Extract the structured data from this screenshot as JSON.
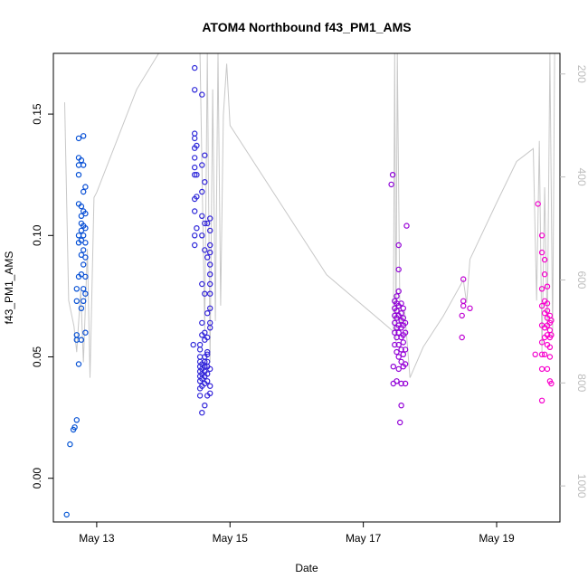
{
  "chart_data": {
    "type": "scatter",
    "title": "ATOM4 Northbound f43_PM1_AMS",
    "xlabel": "Date",
    "ylabel": "f43_PM1_AMS",
    "xlim_days": [
      12.35,
      19.95
    ],
    "ylim": [
      -0.018,
      0.175
    ],
    "x_ticks": [
      {
        "value": 13,
        "label": "May 13"
      },
      {
        "value": 15,
        "label": "May 15"
      },
      {
        "value": 17,
        "label": "May 17"
      },
      {
        "value": 19,
        "label": "May 19"
      }
    ],
    "y_ticks": [
      {
        "value": 0.0,
        "label": "0.00"
      },
      {
        "value": 0.05,
        "label": "0.05"
      },
      {
        "value": 0.1,
        "label": "0.10"
      },
      {
        "value": 0.15,
        "label": "0.15"
      }
    ],
    "right_axis": {
      "ylim": [
        1070,
        160
      ],
      "ticks": [
        {
          "value": 200,
          "label": "200"
        },
        {
          "value": 400,
          "label": "400"
        },
        {
          "value": 600,
          "label": "600"
        },
        {
          "value": 800,
          "label": "800"
        },
        {
          "value": 1000,
          "label": "1000"
        }
      ],
      "color": "#bdbdbd"
    },
    "colors": {
      "start": "#0055d4",
      "mid": "#5500dd",
      "end": "#ff00cc",
      "line": "#c8c8c8",
      "axis": "#000000"
    },
    "line_series": [
      [
        12.52,
        255
      ],
      [
        12.58,
        640
      ],
      [
        12.66,
        690
      ],
      [
        12.7,
        740
      ],
      [
        12.76,
        620
      ],
      [
        12.8,
        760
      ],
      [
        12.86,
        540
      ],
      [
        12.9,
        790
      ],
      [
        12.96,
        440
      ],
      [
        13.0,
        430
      ],
      [
        13.3,
        330
      ],
      [
        13.6,
        230
      ],
      [
        13.93,
        160
      ],
      [
        14.55,
        160
      ],
      [
        14.62,
        700
      ],
      [
        14.66,
        160
      ],
      [
        14.7,
        760
      ],
      [
        14.74,
        230
      ],
      [
        14.78,
        680
      ],
      [
        14.82,
        160
      ],
      [
        14.86,
        650
      ],
      [
        14.9,
        280
      ],
      [
        14.95,
        180
      ],
      [
        15.0,
        300
      ],
      [
        16.45,
        590
      ],
      [
        17.45,
        700
      ],
      [
        17.47,
        160
      ],
      [
        17.49,
        720
      ],
      [
        17.51,
        160
      ],
      [
        17.55,
        690
      ],
      [
        17.62,
        660
      ],
      [
        17.7,
        790
      ],
      [
        17.9,
        730
      ],
      [
        18.2,
        670
      ],
      [
        18.5,
        600
      ],
      [
        18.55,
        645
      ],
      [
        18.6,
        560
      ],
      [
        19.0,
        450
      ],
      [
        19.3,
        370
      ],
      [
        19.55,
        345
      ],
      [
        19.6,
        640
      ],
      [
        19.64,
        330
      ],
      [
        19.68,
        740
      ],
      [
        19.72,
        420
      ],
      [
        19.76,
        700
      ],
      [
        19.8,
        160
      ],
      [
        19.84,
        710
      ],
      [
        19.87,
        160
      ]
    ],
    "scatter_series": [
      {
        "x": 12.55,
        "y": -0.015
      },
      {
        "x": 12.6,
        "y": 0.014
      },
      {
        "x": 12.65,
        "y": 0.02
      },
      {
        "x": 12.67,
        "y": 0.021
      },
      {
        "x": 12.7,
        "y": 0.024
      },
      {
        "x": 12.7,
        "y": 0.057
      },
      {
        "x": 12.7,
        "y": 0.059
      },
      {
        "x": 12.7,
        "y": 0.073
      },
      {
        "x": 12.7,
        "y": 0.078
      },
      {
        "x": 12.73,
        "y": 0.047
      },
      {
        "x": 12.73,
        "y": 0.083
      },
      {
        "x": 12.73,
        "y": 0.097
      },
      {
        "x": 12.73,
        "y": 0.1
      },
      {
        "x": 12.73,
        "y": 0.113
      },
      {
        "x": 12.73,
        "y": 0.125
      },
      {
        "x": 12.73,
        "y": 0.129
      },
      {
        "x": 12.73,
        "y": 0.132
      },
      {
        "x": 12.73,
        "y": 0.14
      },
      {
        "x": 12.77,
        "y": 0.057
      },
      {
        "x": 12.77,
        "y": 0.07
      },
      {
        "x": 12.77,
        "y": 0.084
      },
      {
        "x": 12.77,
        "y": 0.092
      },
      {
        "x": 12.77,
        "y": 0.098
      },
      {
        "x": 12.77,
        "y": 0.102
      },
      {
        "x": 12.77,
        "y": 0.105
      },
      {
        "x": 12.77,
        "y": 0.108
      },
      {
        "x": 12.77,
        "y": 0.112
      },
      {
        "x": 12.77,
        "y": 0.131
      },
      {
        "x": 12.8,
        "y": 0.073
      },
      {
        "x": 12.8,
        "y": 0.078
      },
      {
        "x": 12.8,
        "y": 0.088
      },
      {
        "x": 12.8,
        "y": 0.094
      },
      {
        "x": 12.8,
        "y": 0.1
      },
      {
        "x": 12.8,
        "y": 0.104
      },
      {
        "x": 12.8,
        "y": 0.11
      },
      {
        "x": 12.8,
        "y": 0.118
      },
      {
        "x": 12.8,
        "y": 0.129
      },
      {
        "x": 12.8,
        "y": 0.141
      },
      {
        "x": 12.83,
        "y": 0.06
      },
      {
        "x": 12.83,
        "y": 0.076
      },
      {
        "x": 12.83,
        "y": 0.083
      },
      {
        "x": 12.83,
        "y": 0.091
      },
      {
        "x": 12.83,
        "y": 0.097
      },
      {
        "x": 12.83,
        "y": 0.103
      },
      {
        "x": 12.83,
        "y": 0.109
      },
      {
        "x": 12.83,
        "y": 0.12
      },
      {
        "x": 14.45,
        "y": 0.055
      },
      {
        "x": 14.47,
        "y": 0.096
      },
      {
        "x": 14.47,
        "y": 0.1
      },
      {
        "x": 14.47,
        "y": 0.11
      },
      {
        "x": 14.47,
        "y": 0.115
      },
      {
        "x": 14.47,
        "y": 0.125
      },
      {
        "x": 14.47,
        "y": 0.128
      },
      {
        "x": 14.47,
        "y": 0.132
      },
      {
        "x": 14.47,
        "y": 0.136
      },
      {
        "x": 14.47,
        "y": 0.14
      },
      {
        "x": 14.47,
        "y": 0.142
      },
      {
        "x": 14.47,
        "y": 0.16
      },
      {
        "x": 14.47,
        "y": 0.169
      },
      {
        "x": 14.5,
        "y": 0.103
      },
      {
        "x": 14.5,
        "y": 0.116
      },
      {
        "x": 14.5,
        "y": 0.125
      },
      {
        "x": 14.5,
        "y": 0.137
      },
      {
        "x": 14.55,
        "y": 0.034
      },
      {
        "x": 14.55,
        "y": 0.037
      },
      {
        "x": 14.55,
        "y": 0.04
      },
      {
        "x": 14.55,
        "y": 0.042
      },
      {
        "x": 14.55,
        "y": 0.044
      },
      {
        "x": 14.55,
        "y": 0.046
      },
      {
        "x": 14.55,
        "y": 0.048
      },
      {
        "x": 14.55,
        "y": 0.05
      },
      {
        "x": 14.55,
        "y": 0.053
      },
      {
        "x": 14.55,
        "y": 0.055
      },
      {
        "x": 14.58,
        "y": 0.027
      },
      {
        "x": 14.58,
        "y": 0.038
      },
      {
        "x": 14.58,
        "y": 0.041
      },
      {
        "x": 14.58,
        "y": 0.043
      },
      {
        "x": 14.58,
        "y": 0.045
      },
      {
        "x": 14.58,
        "y": 0.047
      },
      {
        "x": 14.58,
        "y": 0.059
      },
      {
        "x": 14.58,
        "y": 0.064
      },
      {
        "x": 14.58,
        "y": 0.08
      },
      {
        "x": 14.58,
        "y": 0.1
      },
      {
        "x": 14.58,
        "y": 0.108
      },
      {
        "x": 14.58,
        "y": 0.118
      },
      {
        "x": 14.58,
        "y": 0.129
      },
      {
        "x": 14.58,
        "y": 0.158
      },
      {
        "x": 14.62,
        "y": 0.03
      },
      {
        "x": 14.62,
        "y": 0.039
      },
      {
        "x": 14.62,
        "y": 0.042
      },
      {
        "x": 14.62,
        "y": 0.044
      },
      {
        "x": 14.62,
        "y": 0.046
      },
      {
        "x": 14.62,
        "y": 0.048
      },
      {
        "x": 14.62,
        "y": 0.05
      },
      {
        "x": 14.62,
        "y": 0.057
      },
      {
        "x": 14.62,
        "y": 0.06
      },
      {
        "x": 14.62,
        "y": 0.076
      },
      {
        "x": 14.62,
        "y": 0.094
      },
      {
        "x": 14.62,
        "y": 0.105
      },
      {
        "x": 14.62,
        "y": 0.122
      },
      {
        "x": 14.62,
        "y": 0.133
      },
      {
        "x": 14.66,
        "y": 0.034
      },
      {
        "x": 14.66,
        "y": 0.04
      },
      {
        "x": 14.66,
        "y": 0.043
      },
      {
        "x": 14.66,
        "y": 0.046
      },
      {
        "x": 14.66,
        "y": 0.048
      },
      {
        "x": 14.66,
        "y": 0.051
      },
      {
        "x": 14.66,
        "y": 0.052
      },
      {
        "x": 14.66,
        "y": 0.058
      },
      {
        "x": 14.66,
        "y": 0.068
      },
      {
        "x": 14.66,
        "y": 0.091
      },
      {
        "x": 14.66,
        "y": 0.105
      },
      {
        "x": 14.7,
        "y": 0.035
      },
      {
        "x": 14.7,
        "y": 0.038
      },
      {
        "x": 14.7,
        "y": 0.045
      },
      {
        "x": 14.7,
        "y": 0.062
      },
      {
        "x": 14.7,
        "y": 0.064
      },
      {
        "x": 14.7,
        "y": 0.07
      },
      {
        "x": 14.7,
        "y": 0.076
      },
      {
        "x": 14.7,
        "y": 0.08
      },
      {
        "x": 14.7,
        "y": 0.084
      },
      {
        "x": 14.7,
        "y": 0.088
      },
      {
        "x": 14.7,
        "y": 0.093
      },
      {
        "x": 14.7,
        "y": 0.096
      },
      {
        "x": 14.7,
        "y": 0.102
      },
      {
        "x": 14.7,
        "y": 0.107
      },
      {
        "x": 17.42,
        "y": 0.121
      },
      {
        "x": 17.44,
        "y": 0.125
      },
      {
        "x": 17.45,
        "y": 0.039
      },
      {
        "x": 17.45,
        "y": 0.046
      },
      {
        "x": 17.47,
        "y": 0.055
      },
      {
        "x": 17.47,
        "y": 0.06
      },
      {
        "x": 17.47,
        "y": 0.064
      },
      {
        "x": 17.47,
        "y": 0.067
      },
      {
        "x": 17.47,
        "y": 0.07
      },
      {
        "x": 17.47,
        "y": 0.073
      },
      {
        "x": 17.5,
        "y": 0.04
      },
      {
        "x": 17.5,
        "y": 0.052
      },
      {
        "x": 17.5,
        "y": 0.058
      },
      {
        "x": 17.5,
        "y": 0.062
      },
      {
        "x": 17.5,
        "y": 0.066
      },
      {
        "x": 17.5,
        "y": 0.069
      },
      {
        "x": 17.5,
        "y": 0.072
      },
      {
        "x": 17.5,
        "y": 0.075
      },
      {
        "x": 17.53,
        "y": 0.045
      },
      {
        "x": 17.53,
        "y": 0.05
      },
      {
        "x": 17.53,
        "y": 0.055
      },
      {
        "x": 17.53,
        "y": 0.06
      },
      {
        "x": 17.53,
        "y": 0.063
      },
      {
        "x": 17.53,
        "y": 0.067
      },
      {
        "x": 17.53,
        "y": 0.071
      },
      {
        "x": 17.53,
        "y": 0.077
      },
      {
        "x": 17.53,
        "y": 0.086
      },
      {
        "x": 17.53,
        "y": 0.096
      },
      {
        "x": 17.55,
        "y": 0.023
      },
      {
        "x": 17.57,
        "y": 0.03
      },
      {
        "x": 17.57,
        "y": 0.039
      },
      {
        "x": 17.57,
        "y": 0.048
      },
      {
        "x": 17.57,
        "y": 0.053
      },
      {
        "x": 17.57,
        "y": 0.058
      },
      {
        "x": 17.57,
        "y": 0.062
      },
      {
        "x": 17.57,
        "y": 0.065
      },
      {
        "x": 17.57,
        "y": 0.068
      },
      {
        "x": 17.57,
        "y": 0.072
      },
      {
        "x": 17.6,
        "y": 0.046
      },
      {
        "x": 17.6,
        "y": 0.051
      },
      {
        "x": 17.6,
        "y": 0.056
      },
      {
        "x": 17.6,
        "y": 0.059
      },
      {
        "x": 17.6,
        "y": 0.063
      },
      {
        "x": 17.6,
        "y": 0.066
      },
      {
        "x": 17.6,
        "y": 0.07
      },
      {
        "x": 17.63,
        "y": 0.039
      },
      {
        "x": 17.63,
        "y": 0.047
      },
      {
        "x": 17.63,
        "y": 0.053
      },
      {
        "x": 17.63,
        "y": 0.06
      },
      {
        "x": 17.63,
        "y": 0.064
      },
      {
        "x": 17.65,
        "y": 0.104
      },
      {
        "x": 18.48,
        "y": 0.058
      },
      {
        "x": 18.48,
        "y": 0.067
      },
      {
        "x": 18.5,
        "y": 0.071
      },
      {
        "x": 18.5,
        "y": 0.073
      },
      {
        "x": 18.5,
        "y": 0.082
      },
      {
        "x": 18.6,
        "y": 0.07
      },
      {
        "x": 19.58,
        "y": 0.051
      },
      {
        "x": 19.62,
        "y": 0.113
      },
      {
        "x": 19.68,
        "y": 0.032
      },
      {
        "x": 19.68,
        "y": 0.045
      },
      {
        "x": 19.68,
        "y": 0.051
      },
      {
        "x": 19.68,
        "y": 0.056
      },
      {
        "x": 19.68,
        "y": 0.063
      },
      {
        "x": 19.68,
        "y": 0.071
      },
      {
        "x": 19.68,
        "y": 0.078
      },
      {
        "x": 19.68,
        "y": 0.093
      },
      {
        "x": 19.68,
        "y": 0.1
      },
      {
        "x": 19.72,
        "y": 0.051
      },
      {
        "x": 19.72,
        "y": 0.058
      },
      {
        "x": 19.72,
        "y": 0.062
      },
      {
        "x": 19.72,
        "y": 0.068
      },
      {
        "x": 19.72,
        "y": 0.073
      },
      {
        "x": 19.72,
        "y": 0.084
      },
      {
        "x": 19.72,
        "y": 0.09
      },
      {
        "x": 19.76,
        "y": 0.045
      },
      {
        "x": 19.76,
        "y": 0.055
      },
      {
        "x": 19.76,
        "y": 0.059
      },
      {
        "x": 19.76,
        "y": 0.063
      },
      {
        "x": 19.76,
        "y": 0.066
      },
      {
        "x": 19.76,
        "y": 0.069
      },
      {
        "x": 19.76,
        "y": 0.072
      },
      {
        "x": 19.76,
        "y": 0.079
      },
      {
        "x": 19.8,
        "y": 0.04
      },
      {
        "x": 19.8,
        "y": 0.05
      },
      {
        "x": 19.8,
        "y": 0.054
      },
      {
        "x": 19.8,
        "y": 0.058
      },
      {
        "x": 19.8,
        "y": 0.061
      },
      {
        "x": 19.8,
        "y": 0.064
      },
      {
        "x": 19.8,
        "y": 0.067
      },
      {
        "x": 19.82,
        "y": 0.039
      },
      {
        "x": 19.82,
        "y": 0.059
      },
      {
        "x": 19.82,
        "y": 0.065
      }
    ]
  }
}
